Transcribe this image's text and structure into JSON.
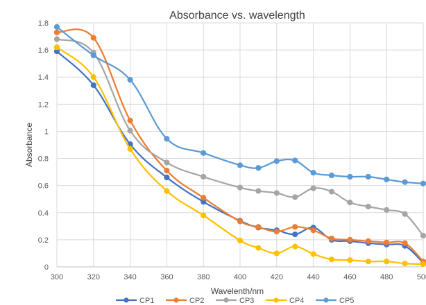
{
  "chart_data": {
    "type": "line",
    "title": "Absorbance vs. wavelength",
    "xlabel": "Wavelenth/nm",
    "ylabel": "Absorbance",
    "xlim": [
      300,
      500
    ],
    "ylim": [
      0,
      1.8
    ],
    "x_ticks": [
      "300",
      "320",
      "340",
      "360",
      "380",
      "400",
      "420",
      "440",
      "460",
      "480",
      "500"
    ],
    "y_ticks": [
      "0",
      "0.2",
      "0.4",
      "0.6",
      "0.8",
      "1",
      "1.2",
      "1.4",
      "1.6",
      "1.8"
    ],
    "grid": true,
    "legend_position": "bottom",
    "series": [
      {
        "name": "CP1",
        "color": "#4472C4",
        "x": [
          300,
          320,
          340,
          360,
          380,
          400,
          410,
          420,
          430,
          440,
          450,
          460,
          470,
          480,
          490,
          500
        ],
        "y": [
          1.59,
          1.34,
          0.905,
          0.66,
          0.48,
          0.34,
          0.29,
          0.27,
          0.24,
          0.29,
          0.2,
          0.19,
          0.175,
          0.165,
          0.155,
          0.03
        ]
      },
      {
        "name": "CP2",
        "color": "#ED7D31",
        "x": [
          300,
          320,
          340,
          360,
          380,
          400,
          410,
          420,
          430,
          440,
          450,
          460,
          470,
          480,
          490,
          500
        ],
        "y": [
          1.73,
          1.69,
          1.08,
          0.71,
          0.51,
          0.335,
          0.295,
          0.26,
          0.295,
          0.27,
          0.21,
          0.2,
          0.19,
          0.18,
          0.175,
          0.04
        ]
      },
      {
        "name": "CP3",
        "color": "#A5A5A5",
        "x": [
          300,
          320,
          340,
          360,
          380,
          400,
          410,
          420,
          430,
          440,
          450,
          460,
          470,
          480,
          490,
          500
        ],
        "y": [
          1.68,
          1.58,
          1.005,
          0.77,
          0.665,
          0.585,
          0.56,
          0.545,
          0.515,
          0.58,
          0.555,
          0.475,
          0.445,
          0.42,
          0.39,
          0.23
        ]
      },
      {
        "name": "CP4",
        "color": "#FFC000",
        "x": [
          300,
          320,
          340,
          360,
          380,
          400,
          410,
          420,
          430,
          440,
          450,
          460,
          470,
          480,
          490,
          500
        ],
        "y": [
          1.62,
          1.4,
          0.87,
          0.56,
          0.38,
          0.195,
          0.14,
          0.1,
          0.15,
          0.095,
          0.055,
          0.05,
          0.04,
          0.04,
          0.025,
          0.02
        ]
      },
      {
        "name": "CP5",
        "color": "#5B9BD5",
        "x": [
          300,
          320,
          340,
          360,
          380,
          400,
          410,
          420,
          430,
          440,
          450,
          460,
          470,
          480,
          490,
          500
        ],
        "y": [
          1.77,
          1.56,
          1.38,
          0.945,
          0.84,
          0.75,
          0.73,
          0.78,
          0.785,
          0.695,
          0.675,
          0.665,
          0.665,
          0.645,
          0.625,
          0.615
        ]
      }
    ]
  }
}
